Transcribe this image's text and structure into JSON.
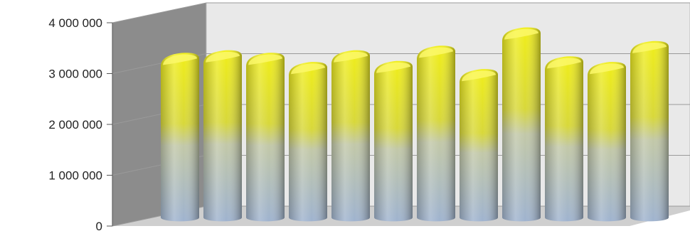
{
  "chart_data": {
    "type": "bar",
    "title": "",
    "xlabel": "",
    "ylabel": "",
    "categories": [
      "",
      "",
      "",
      "",
      "",
      "",
      "",
      "",
      "",
      "",
      "",
      ""
    ],
    "series": [
      {
        "values": [
          3100000,
          3150000,
          3100000,
          2920000,
          3150000,
          2940000,
          3240000,
          2780000,
          3600000,
          3030000,
          2920000,
          3330000
        ]
      }
    ],
    "ylim": [
      0,
      4000000
    ],
    "yticks": [
      0,
      1000000,
      2000000,
      3000000,
      4000000
    ],
    "ytick_labels": [
      "0",
      "1 000 000",
      "2 000 000",
      "3 000 000",
      "4 000 000"
    ],
    "grid": true,
    "legend": "none",
    "style": "3d-cylinder",
    "colors": {
      "bar_top": "#f0ee1a",
      "bar_bottom": "#9fb3cf",
      "back_wall": "#e9e9e9",
      "side_wall": "#8c8c8c",
      "floor": "#cfcfcf",
      "gridline": "#9a9a9a"
    }
  }
}
